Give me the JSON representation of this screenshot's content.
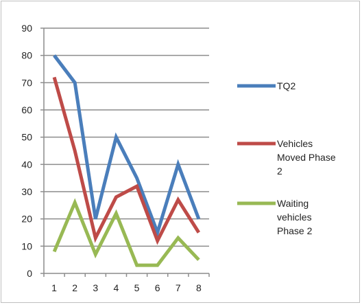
{
  "chart_data": {
    "type": "line",
    "title": "",
    "xlabel": "",
    "ylabel": "",
    "categories": [
      "1",
      "2",
      "3",
      "4",
      "5",
      "6",
      "7",
      "8"
    ],
    "ylim": [
      0,
      90
    ],
    "yticks": [
      0,
      10,
      20,
      30,
      40,
      50,
      60,
      70,
      80,
      90
    ],
    "grid": true,
    "legend_position": "right",
    "series": [
      {
        "name": "TQ2",
        "legend_lines": [
          "TQ2"
        ],
        "color": "#4a7ebb",
        "values": [
          80,
          70,
          20,
          50,
          35,
          15,
          40,
          20
        ]
      },
      {
        "name": "Vehicles Moved Phase 2",
        "legend_lines": [
          "Vehicles",
          "Moved Phase",
          "2"
        ],
        "color": "#be4b48",
        "values": [
          72,
          45,
          13,
          28,
          32,
          12,
          27,
          15
        ]
      },
      {
        "name": "Waiting vehicles Phase 2",
        "legend_lines": [
          "Waiting",
          "vehicles",
          "Phase 2"
        ],
        "color": "#98b954",
        "values": [
          8,
          26,
          7,
          22,
          3,
          3,
          13,
          5
        ]
      }
    ]
  }
}
